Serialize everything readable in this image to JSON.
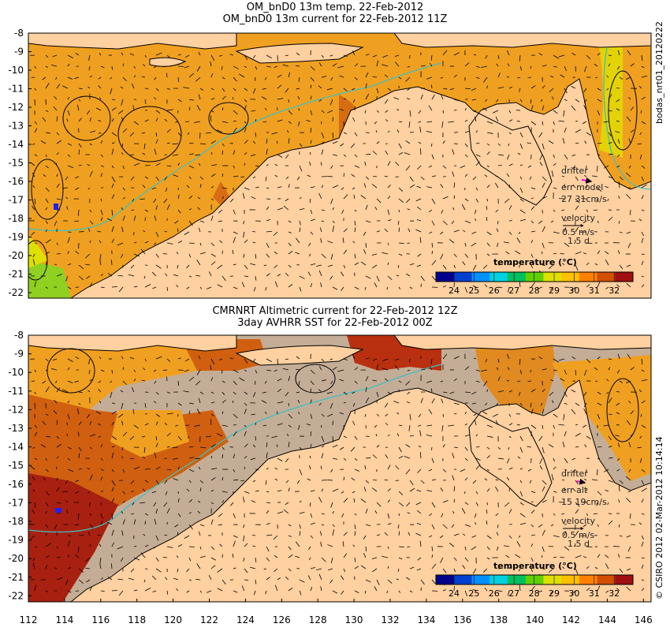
{
  "top": {
    "title1": "OM_bnD0 13m temp. 22-Feb-2012",
    "title2": "OM_bnD0 13m current for 22-Feb-2012 11Z",
    "side_label": "bodas_nrt01_20120222",
    "drifter": "drifter",
    "err_label": "err model",
    "err_values": "27 31cm/s",
    "velocity": "velocity",
    "velocity_scale": "0.5 m/s",
    "velocity_days": "1.5 d",
    "colorbar_title": "temperature (°C)"
  },
  "bottom": {
    "title1": "CMRNRT Altimetric current for 22-Feb-2012 12Z",
    "title2": "3day AVHRR SST for 22-Feb-2012 00Z",
    "side_label": "© CSIRO 2012   02-Mar-2012 10:14:14",
    "drifter": "drifter",
    "err_label": "err alt",
    "err_values": "15 19cm/s",
    "velocity": "velocity",
    "velocity_scale": "0.5 m/s",
    "velocity_days": "1.5 d",
    "colorbar_title": "temperature (°C)"
  },
  "axes": {
    "lat_ticks": [
      "-8",
      "-9",
      "-10",
      "-11",
      "-12",
      "-13",
      "-14",
      "-15",
      "-16",
      "-17",
      "-18",
      "-19",
      "-20",
      "-21",
      "-22"
    ],
    "lon_ticks": [
      "112",
      "114",
      "116",
      "118",
      "120",
      "122",
      "124",
      "126",
      "128",
      "130",
      "132",
      "134",
      "136",
      "138",
      "140",
      "142",
      "144",
      "146"
    ]
  },
  "colorbar": {
    "ticks": [
      "24",
      "25",
      "26",
      "27",
      "28",
      "29",
      "30",
      "31",
      "32"
    ],
    "colors": [
      "#00008b",
      "#0040d0",
      "#0090ff",
      "#00d0e0",
      "#00c060",
      "#60d000",
      "#e0e000",
      "#ffc000",
      "#ff8000",
      "#d05000",
      "#a01010"
    ]
  },
  "colors": {
    "land": "#ffd0a0",
    "sea_warm": "#f0a020",
    "sea_hot": "#d06010",
    "cloud": "#c4ad96",
    "coast": "#000000",
    "isobath": "#40c0c0"
  }
}
